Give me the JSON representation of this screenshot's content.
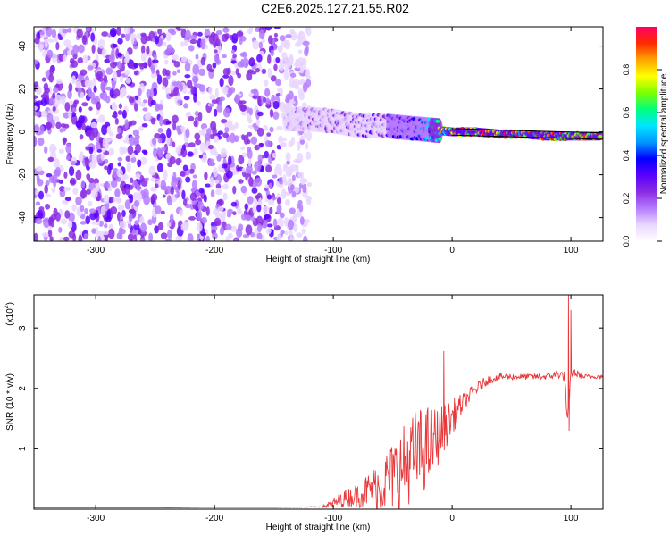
{
  "title": "C2E6.2025.127.21.55.R02",
  "colors": {
    "snr_line": "#e8383a",
    "colormap": [
      "#ffffff",
      "#e9d6ff",
      "#b57cff",
      "#8a2be2",
      "#5a00ff",
      "#0000ff",
      "#0096ff",
      "#00e5ff",
      "#00ff80",
      "#7dff00",
      "#ffff00",
      "#ffa500",
      "#ff2a00",
      "#ff0066"
    ]
  },
  "chart_data": [
    {
      "type": "heatmap",
      "xlabel": "Height of straight line (km)",
      "ylabel": "Frequency (Hz)",
      "xlim": [
        -352,
        127
      ],
      "ylim": [
        -51,
        49
      ],
      "x_ticks": [
        -300,
        -200,
        -100,
        0,
        100
      ],
      "x_tick_labels": [
        "-300",
        "-200",
        "-100",
        "0",
        "100"
      ],
      "y_ticks": [
        -40,
        -20,
        0,
        20,
        40
      ],
      "y_tick_labels": [
        "-40",
        "-20",
        "0",
        "20",
        "40"
      ],
      "colorbar": {
        "label": "Normalized spectral amplitude",
        "range": [
          0,
          1
        ],
        "ticks": [
          0.0,
          0.2,
          0.4,
          0.6,
          0.8
        ],
        "tick_labels": [
          "0.0",
          "0.2",
          "0.4",
          "0.6",
          "0.8"
        ]
      },
      "noise_region_x": [
        -352,
        -135
      ],
      "signal_trace": [
        {
          "x": -140,
          "freq": 6,
          "amp": 0.15
        },
        {
          "x": -120,
          "freq": 6,
          "amp": 0.22
        },
        {
          "x": -100,
          "freq": 5,
          "amp": 0.25
        },
        {
          "x": -80,
          "freq": 3,
          "amp": 0.3
        },
        {
          "x": -60,
          "freq": 3,
          "amp": 0.32
        },
        {
          "x": -40,
          "freq": 2,
          "amp": 0.35
        },
        {
          "x": -20,
          "freq": 1,
          "amp": 0.5
        },
        {
          "x": 0,
          "freq": 0,
          "amp": 0.9
        },
        {
          "x": 20,
          "freq": 0,
          "amp": 0.95
        },
        {
          "x": 40,
          "freq": -1,
          "amp": 0.95
        },
        {
          "x": 60,
          "freq": -1,
          "amp": 0.9
        },
        {
          "x": 80,
          "freq": -2,
          "amp": 0.85
        },
        {
          "x": 100,
          "freq": -2,
          "amp": 0.9
        },
        {
          "x": 125,
          "freq": -2,
          "amp": 0.92
        }
      ]
    },
    {
      "type": "line",
      "xlabel": "Height of straight line (km)",
      "ylabel": "SNR (10 * v/v)",
      "y_multiplier_label": "(x10",
      "y_multiplier_exp": "4",
      "y_multiplier_close": ")",
      "xlim": [
        -352,
        127
      ],
      "ylim": [
        0,
        3.55
      ],
      "x_ticks": [
        -300,
        -200,
        -100,
        0,
        100
      ],
      "x_tick_labels": [
        "-300",
        "-200",
        "-100",
        "0",
        "100"
      ],
      "y_ticks": [
        1,
        2,
        3
      ],
      "y_tick_labels": [
        "1",
        "2",
        "3"
      ],
      "series": [
        {
          "x": [
            -352,
            -300,
            -250,
            -200,
            -150,
            -110,
            -100,
            -90,
            -80,
            -70,
            -60,
            -50,
            -40,
            -30,
            -20,
            -10,
            0,
            10,
            20,
            30,
            40,
            60,
            80,
            90,
            95,
            97,
            100,
            110,
            127
          ],
          "y": [
            0.02,
            0.02,
            0.02,
            0.03,
            0.03,
            0.04,
            0.1,
            0.2,
            0.25,
            0.35,
            0.45,
            0.6,
            0.8,
            1.0,
            1.1,
            1.3,
            1.55,
            1.8,
            2.0,
            2.15,
            2.2,
            2.2,
            2.2,
            2.25,
            2.2,
            1.4,
            2.3,
            2.2,
            2.2
          ],
          "noise_amp": [
            0,
            0,
            0,
            0,
            0,
            0.01,
            0.08,
            0.15,
            0.2,
            0.3,
            0.45,
            0.6,
            0.7,
            0.75,
            0.7,
            0.45,
            0.3,
            0.15,
            0.1,
            0.08,
            0.06,
            0.05,
            0.05,
            0.08,
            0.1,
            0.1,
            0.1,
            0.04,
            0.03
          ],
          "spikes": [
            {
              "x": -7,
              "y": 2.62
            },
            {
              "x": 98,
              "y": 3.6
            },
            {
              "x": 100,
              "y": 3.3
            },
            {
              "x": 98.5,
              "y": 1.3
            }
          ]
        }
      ]
    }
  ]
}
